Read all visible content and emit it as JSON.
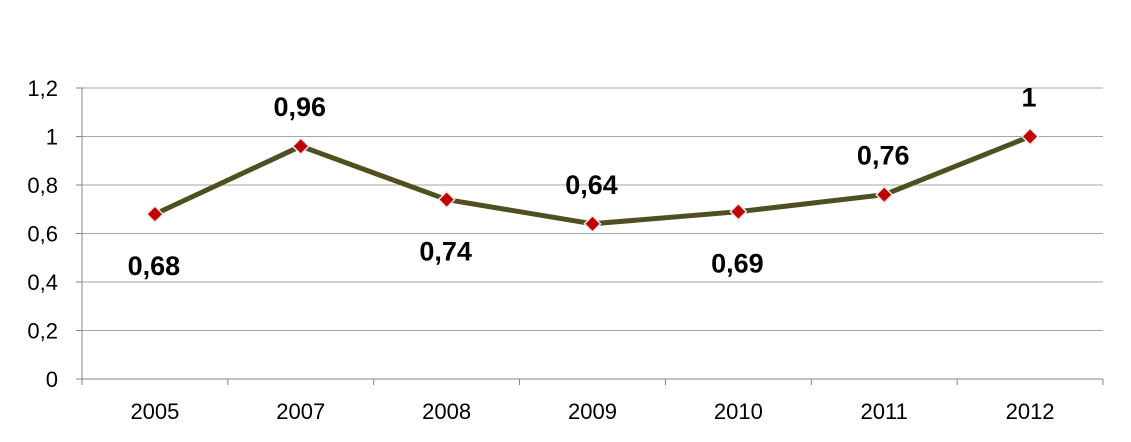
{
  "chart_data": {
    "type": "line",
    "categories": [
      "2005",
      "2007",
      "2008",
      "2009",
      "2010",
      "2011",
      "2012"
    ],
    "series": [
      {
        "values": [
          0.68,
          0.96,
          0.74,
          0.64,
          0.69,
          0.76,
          1
        ],
        "data_labels": [
          "0,68",
          "0,96",
          "0,74",
          "0,64",
          "0,69",
          "0,76",
          "1"
        ],
        "label_position": [
          "below",
          "above",
          "below",
          "above",
          "below",
          "above",
          "above"
        ]
      }
    ],
    "y_ticks": [
      0,
      0.2,
      0.4,
      0.6,
      0.8,
      1,
      1.2
    ],
    "y_tick_labels": [
      "0",
      "0,2",
      "0,4",
      "0,6",
      "0,8",
      "1",
      "1,2"
    ],
    "ylim": [
      0,
      1.2
    ],
    "title": "",
    "xlabel": "",
    "ylabel": "",
    "grid": true,
    "legend": "none",
    "colors": {
      "line": "#4f4f1f",
      "marker_fill": "#c00000",
      "marker_stroke": "#e8e8e8",
      "grid": "#a6a6a6",
      "axis": "#868686"
    }
  }
}
